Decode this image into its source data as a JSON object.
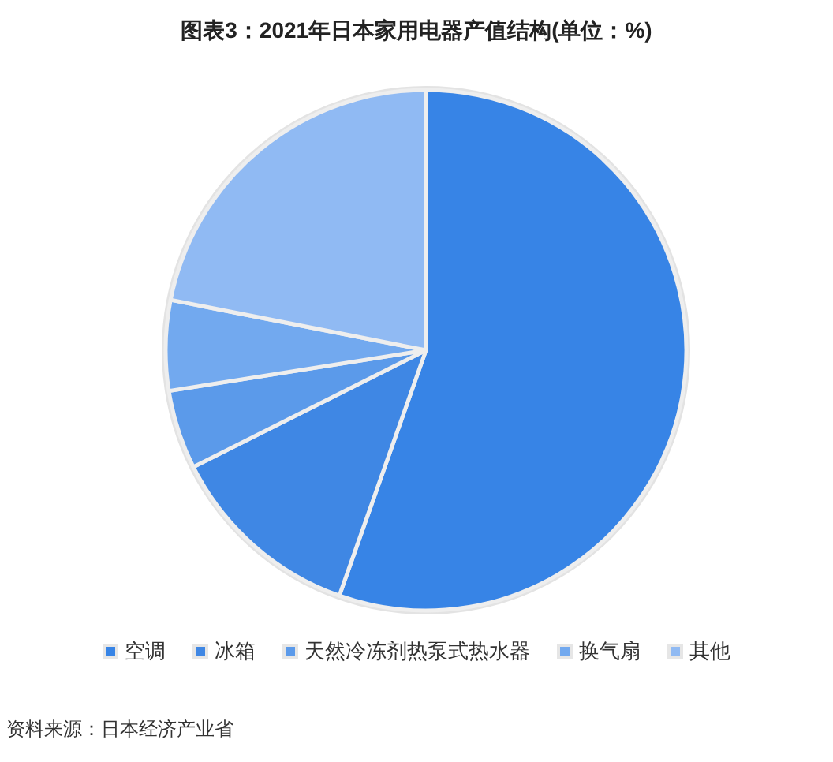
{
  "chart_data": {
    "type": "pie",
    "title": "图表3：2021年日本家用电器产值结构(单位：%)",
    "categories": [
      "空调",
      "冰箱",
      "天然冷冻剂热泵式热水器",
      "换气扇",
      "其他"
    ],
    "values": [
      55.4,
      12.2,
      4.9,
      5.6,
      21.9
    ],
    "colors": [
      "#3784e6",
      "#3f87e4",
      "#5b9aea",
      "#72a9ef",
      "#90baf3"
    ],
    "legend": "bottom",
    "annotations": [
      "资料来源：日本经济产业省"
    ]
  }
}
